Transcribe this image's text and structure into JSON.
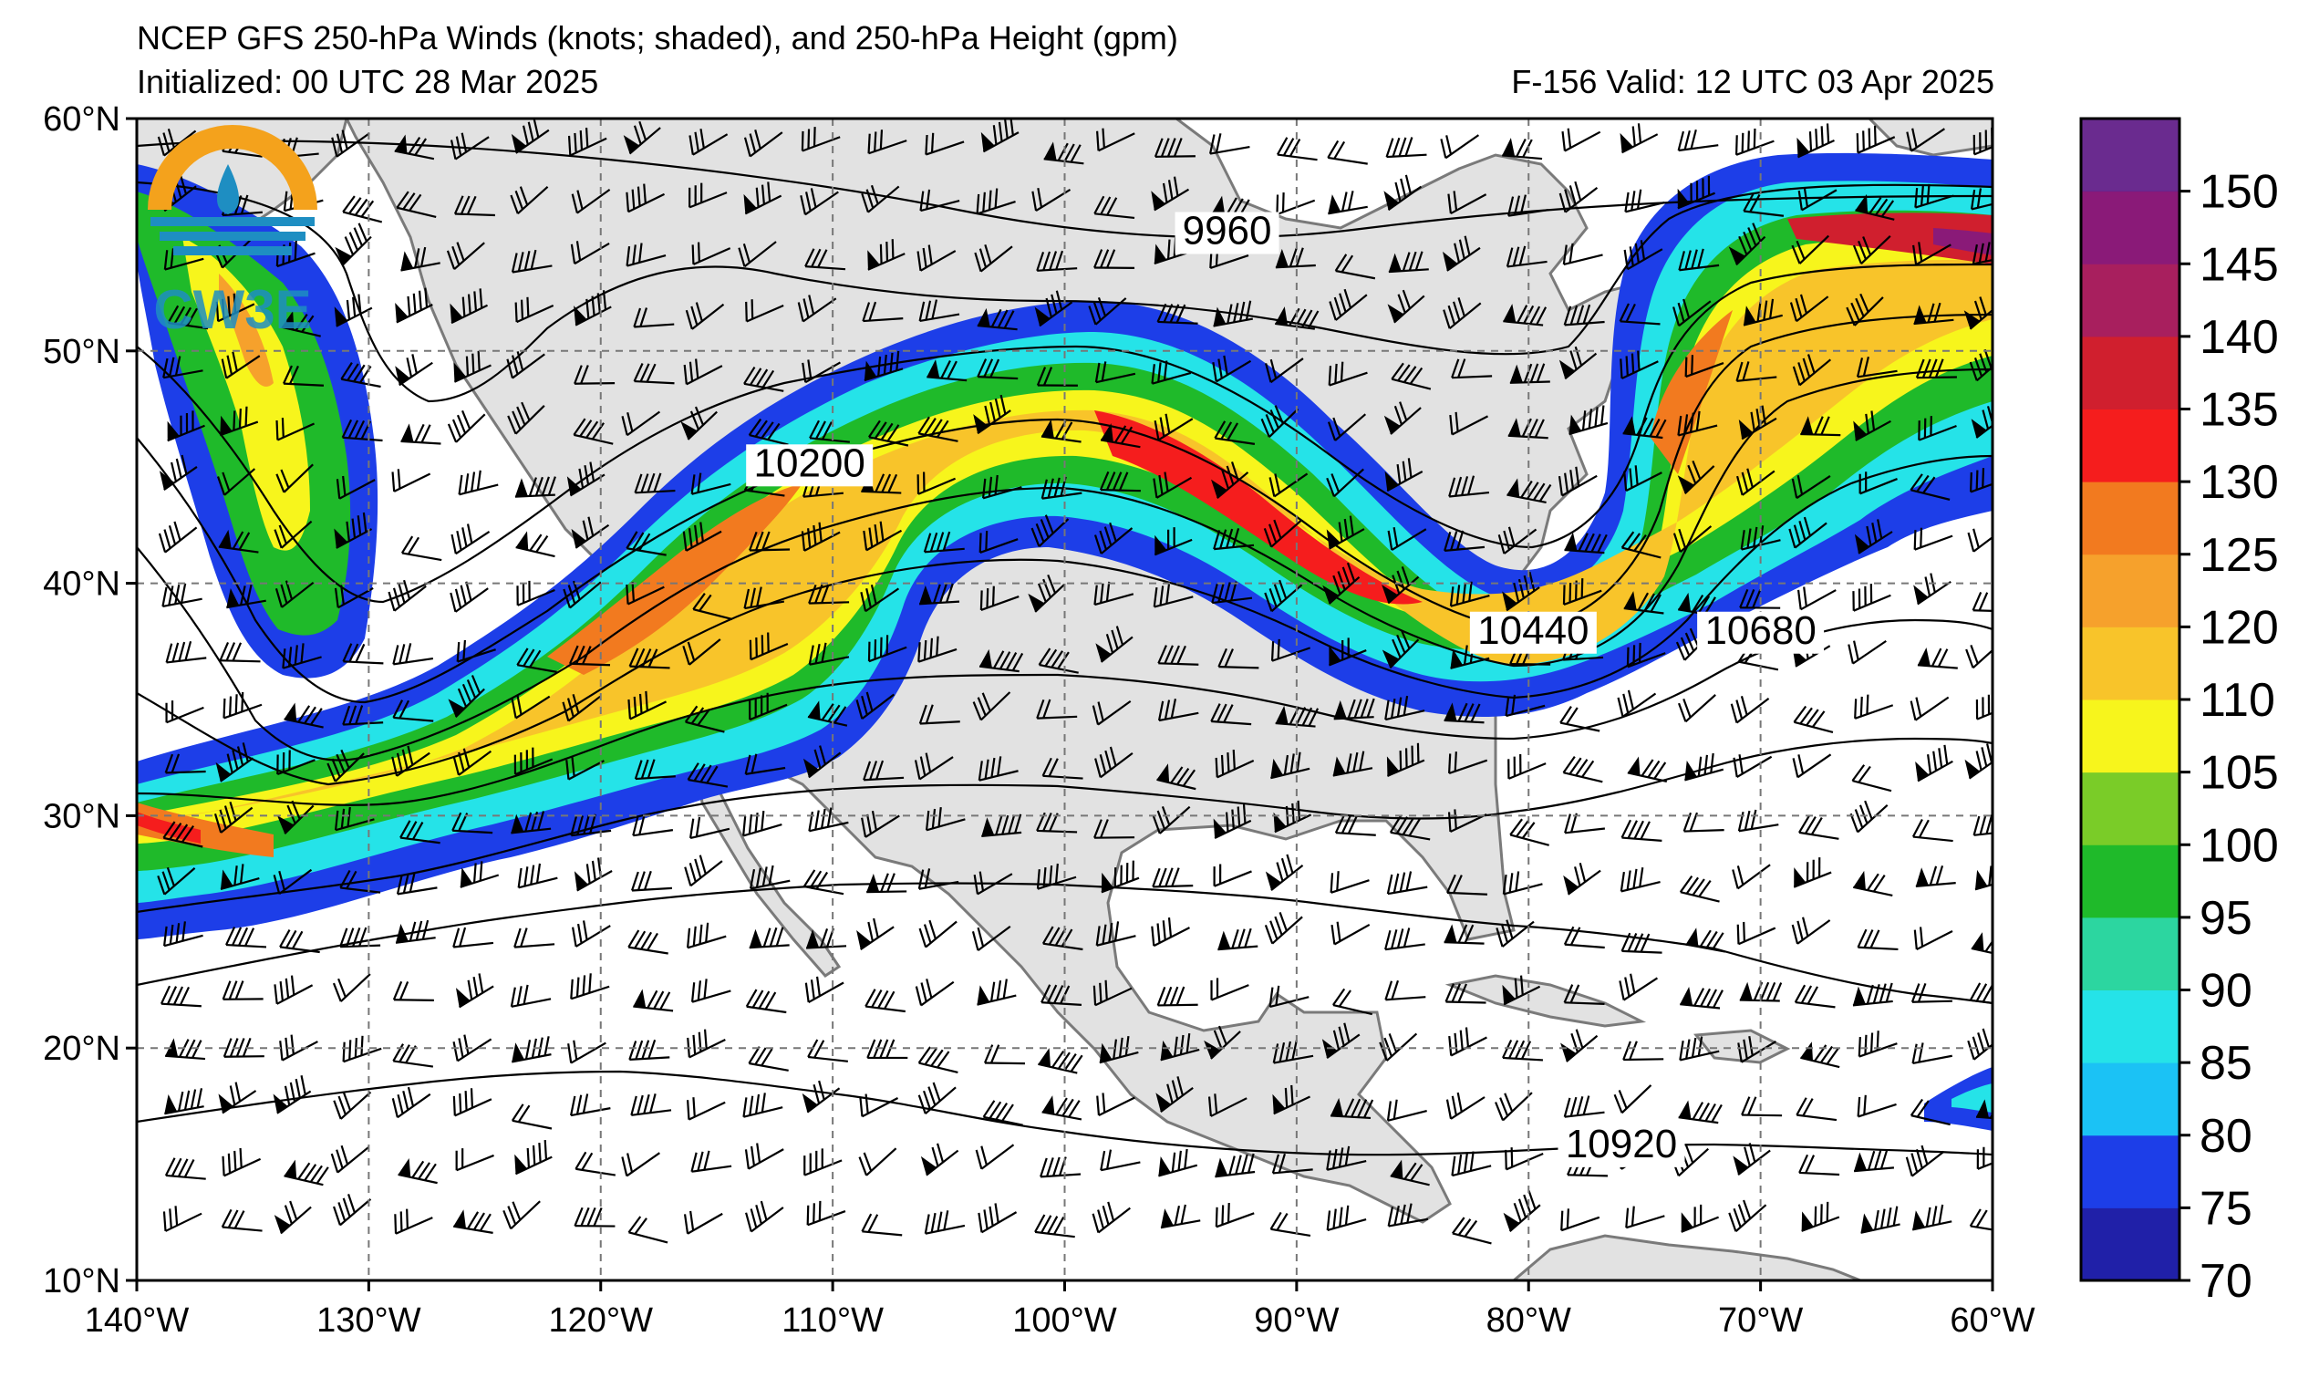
{
  "title": "NCEP GFS 250-hPa Winds (knots; shaded), and 250-hPa Height (gpm)",
  "initialized": "Initialized: 00 UTC 28 Mar 2025",
  "valid": "F-156  Valid: 12 UTC 03 Apr 2025",
  "logo_text": "CW3E",
  "map": {
    "lon_range": [
      -140,
      -60
    ],
    "lat_range": [
      10,
      60
    ],
    "lon_ticks": [
      {
        "value": -140,
        "label": "140°W"
      },
      {
        "value": -130,
        "label": "130°W"
      },
      {
        "value": -120,
        "label": "120°W"
      },
      {
        "value": -110,
        "label": "110°W"
      },
      {
        "value": -100,
        "label": "100°W"
      },
      {
        "value": -90,
        "label": "90°W"
      },
      {
        "value": -80,
        "label": "80°W"
      },
      {
        "value": -70,
        "label": "70°W"
      },
      {
        "value": -60,
        "label": "60°W"
      }
    ],
    "lat_ticks": [
      {
        "value": 60,
        "label": "60°N"
      },
      {
        "value": 50,
        "label": "50°N"
      },
      {
        "value": 40,
        "label": "40°N"
      },
      {
        "value": 30,
        "label": "30°N"
      },
      {
        "value": 20,
        "label": "20°N"
      },
      {
        "value": 10,
        "label": "10°N"
      }
    ],
    "grid": "dashed",
    "land_color": "#e2e2e2",
    "coast_color": "#7a7a7a",
    "contour_labels": [
      {
        "text": "9960",
        "lon": -93,
        "lat": 54.8
      },
      {
        "text": "10200",
        "lon": -111,
        "lat": 44.8
      },
      {
        "text": "10440",
        "lon": -79.8,
        "lat": 37.6
      },
      {
        "text": "10680",
        "lon": -70,
        "lat": 37.6
      },
      {
        "text": "10920",
        "lon": -76,
        "lat": 15.5
      }
    ]
  },
  "colorbar": {
    "unit": "knots",
    "levels": [
      {
        "value": 70,
        "label": "70",
        "color": "#2020a8"
      },
      {
        "value": 75,
        "label": "75",
        "color": "#1d3ee8"
      },
      {
        "value": 80,
        "label": "80",
        "color": "#1bc2f5"
      },
      {
        "value": 85,
        "label": "85",
        "color": "#25e3e8"
      },
      {
        "value": 90,
        "label": "90",
        "color": "#2cd6a0"
      },
      {
        "value": 95,
        "label": "95",
        "color": "#1fba2a"
      },
      {
        "value": 100,
        "label": "100",
        "color": "#7acc28"
      },
      {
        "value": 105,
        "label": "105",
        "color": "#f7f51c"
      },
      {
        "value": 110,
        "label": "110",
        "color": "#f8c42a"
      },
      {
        "value": 120,
        "label": "120",
        "color": "#f6a12c"
      },
      {
        "value": 125,
        "label": "125",
        "color": "#f27a1f"
      },
      {
        "value": 130,
        "label": "130",
        "color": "#f51d1d"
      },
      {
        "value": 135,
        "label": "135",
        "color": "#d01f2e"
      },
      {
        "value": 140,
        "label": "140",
        "color": "#a81f5e"
      },
      {
        "value": 145,
        "label": "145",
        "color": "#8a1a78"
      },
      {
        "value": 150,
        "label": "150",
        "color": "#6c1d87"
      }
    ],
    "top_color": "#6a2b8f"
  }
}
